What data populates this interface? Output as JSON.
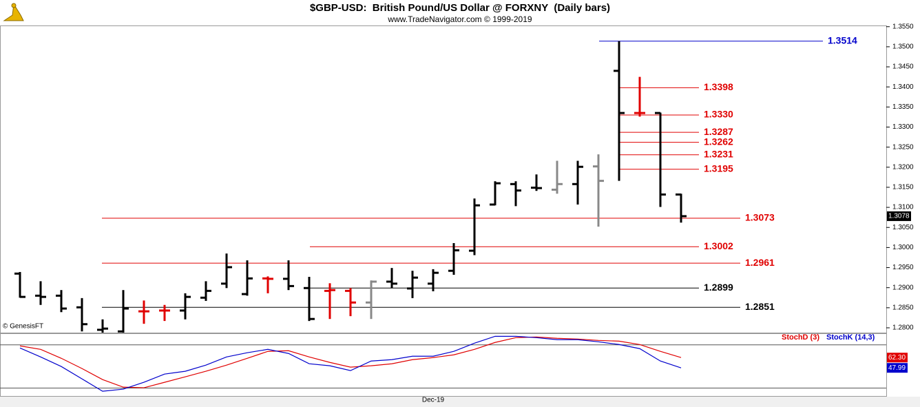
{
  "chart_data": [
    {
      "type": "ohlc",
      "title": "$GBP-USD:  British Pound/US Dollar @ FORXNY  (Daily bars)",
      "subtitle": "www.TradeNavigator.com © 1999-2019",
      "credit": "© GenesisFT",
      "categories": [
        null,
        null,
        null,
        null,
        null,
        null,
        null,
        null,
        null,
        null,
        null,
        null,
        null,
        null,
        null,
        null,
        null,
        null,
        null,
        null,
        "Dec-19",
        null,
        null,
        null,
        null,
        null,
        null,
        null,
        null,
        null,
        null,
        null,
        null
      ],
      "open": [
        1.2935,
        1.288,
        1.288,
        1.2851,
        1.2795,
        1.2791,
        1.2841,
        1.2843,
        1.2843,
        1.2875,
        1.291,
        1.2884,
        1.2923,
        1.2922,
        1.2899,
        1.2892,
        1.2892,
        1.2863,
        1.2915,
        1.2898,
        1.291,
        1.2942,
        1.2992,
        1.3107,
        1.3158,
        1.3149,
        1.3144,
        1.3158,
        1.3202,
        1.344,
        1.3335,
        1.3335,
        1.3132
      ],
      "high": [
        1.2939,
        1.2916,
        1.2894,
        1.2874,
        1.2821,
        1.2894,
        1.2868,
        1.2857,
        1.2886,
        1.2916,
        1.2985,
        1.2968,
        1.2928,
        1.2968,
        1.2927,
        1.2911,
        1.2899,
        1.2918,
        1.2949,
        1.2942,
        1.2946,
        1.3011,
        1.3122,
        1.3165,
        1.3165,
        1.3182,
        1.3216,
        1.3216,
        1.3232,
        1.3514,
        1.3425,
        1.3336,
        1.3134
      ],
      "low": [
        1.2875,
        1.2857,
        1.2839,
        1.2791,
        1.2788,
        1.2788,
        1.281,
        1.2817,
        1.2821,
        1.2867,
        1.2899,
        1.288,
        1.2886,
        1.2894,
        1.2817,
        1.2822,
        1.2829,
        1.2822,
        1.2899,
        1.2874,
        1.2891,
        1.2932,
        1.2981,
        1.3105,
        1.3103,
        1.3141,
        1.3134,
        1.3107,
        1.3052,
        1.3166,
        1.3326,
        1.3101,
        1.3062
      ],
      "close": [
        1.2877,
        1.2877,
        1.2848,
        1.2809,
        1.2798,
        1.2848,
        1.2841,
        1.2843,
        1.2877,
        1.2892,
        1.2951,
        1.2923,
        1.2922,
        1.2904,
        1.2822,
        1.2894,
        1.2863,
        1.2915,
        1.291,
        1.2925,
        1.2937,
        1.2993,
        1.3105,
        1.316,
        1.3142,
        1.3148,
        1.3158,
        1.3201,
        1.3166,
        1.3335,
        1.3335,
        1.3132,
        1.3078
      ],
      "colors": [
        "#000000",
        "#000000",
        "#000000",
        "#000000",
        "#000000",
        "#000000",
        "#e00000",
        "#e00000",
        "#000000",
        "#000000",
        "#000000",
        "#000000",
        "#e00000",
        "#000000",
        "#000000",
        "#e00000",
        "#e00000",
        "#888888",
        "#000000",
        "#000000",
        "#000000",
        "#000000",
        "#000000",
        "#000000",
        "#000000",
        "#000000",
        "#888888",
        "#000000",
        "#888888",
        "#000000",
        "#e00000",
        "#000000",
        "#000000"
      ],
      "ylim": [
        1.2788,
        1.3553
      ],
      "yticks": [
        {
          "value": 1.28,
          "label": "1.2800"
        },
        {
          "value": 1.285,
          "label": "1.2850"
        },
        {
          "value": 1.29,
          "label": "1.2900"
        },
        {
          "value": 1.295,
          "label": "1.2950"
        },
        {
          "value": 1.3,
          "label": "1.3000"
        },
        {
          "value": 1.305,
          "label": "1.3050"
        },
        {
          "value": 1.31,
          "label": "1.3100"
        },
        {
          "value": 1.315,
          "label": "1.3150"
        },
        {
          "value": 1.32,
          "label": "1.3200"
        },
        {
          "value": 1.325,
          "label": "1.3250"
        },
        {
          "value": 1.33,
          "label": "1.3300"
        },
        {
          "value": 1.335,
          "label": "1.3350"
        },
        {
          "value": 1.34,
          "label": "1.3400"
        },
        {
          "value": 1.345,
          "label": "1.3450"
        },
        {
          "value": 1.35,
          "label": "1.3500"
        },
        {
          "value": 1.355,
          "label": "1.3550"
        }
      ],
      "last_price": {
        "value": 1.3078,
        "label": "1.3078"
      },
      "levels": [
        {
          "value": 1.3514,
          "label": "1.3514",
          "color": "#0000cc"
        },
        {
          "value": 1.3398,
          "label": "1.3398",
          "color": "#e00000"
        },
        {
          "value": 1.333,
          "label": "1.3330",
          "color": "#e00000"
        },
        {
          "value": 1.3287,
          "label": "1.3287",
          "color": "#e00000"
        },
        {
          "value": 1.3262,
          "label": "1.3262",
          "color": "#e00000"
        },
        {
          "value": 1.3231,
          "label": "1.3231",
          "color": "#e00000"
        },
        {
          "value": 1.3195,
          "label": "1.3195",
          "color": "#e00000"
        },
        {
          "value": 1.3073,
          "label": "1.3073",
          "color": "#e00000"
        },
        {
          "value": 1.3002,
          "label": "1.3002",
          "color": "#e00000"
        },
        {
          "value": 1.2961,
          "label": "1.2961",
          "color": "#e00000"
        },
        {
          "value": 1.2899,
          "label": "1.2899",
          "color": "#000000"
        },
        {
          "value": 1.2851,
          "label": "1.2851",
          "color": "#000000"
        }
      ]
    },
    {
      "type": "line",
      "series": [
        {
          "name": "StochD (3)",
          "color": "#e00000",
          "last_label": "62.30",
          "values": [
            78.5,
            73.7,
            61.3,
            47.1,
            31.8,
            21.3,
            20.4,
            28.0,
            35.6,
            43.3,
            51.8,
            61.3,
            70.9,
            71.8,
            63.2,
            55.6,
            49.0,
            50.9,
            53.7,
            59.4,
            62.3,
            66.1,
            73.7,
            83.3,
            89.9,
            90.9,
            89.0,
            88.0,
            86.1,
            85.1,
            80.4,
            70.9,
            62.3
          ]
        },
        {
          "name": "StochK (14,3)",
          "color": "#0000cc",
          "last_label": "47.99",
          "values": [
            75.6,
            63.2,
            49.9,
            32.8,
            15.6,
            18.5,
            28.0,
            39.4,
            43.3,
            51.8,
            63.2,
            69.0,
            73.7,
            68.0,
            53.7,
            50.9,
            44.2,
            57.5,
            59.4,
            64.2,
            64.2,
            70.9,
            82.3,
            91.8,
            91.8,
            89.9,
            87.1,
            87.1,
            84.2,
            80.4,
            74.7,
            57.5,
            47.99
          ]
        }
      ],
      "ylim": [
        9,
        95
      ],
      "levels": [
        20,
        80
      ]
    }
  ]
}
